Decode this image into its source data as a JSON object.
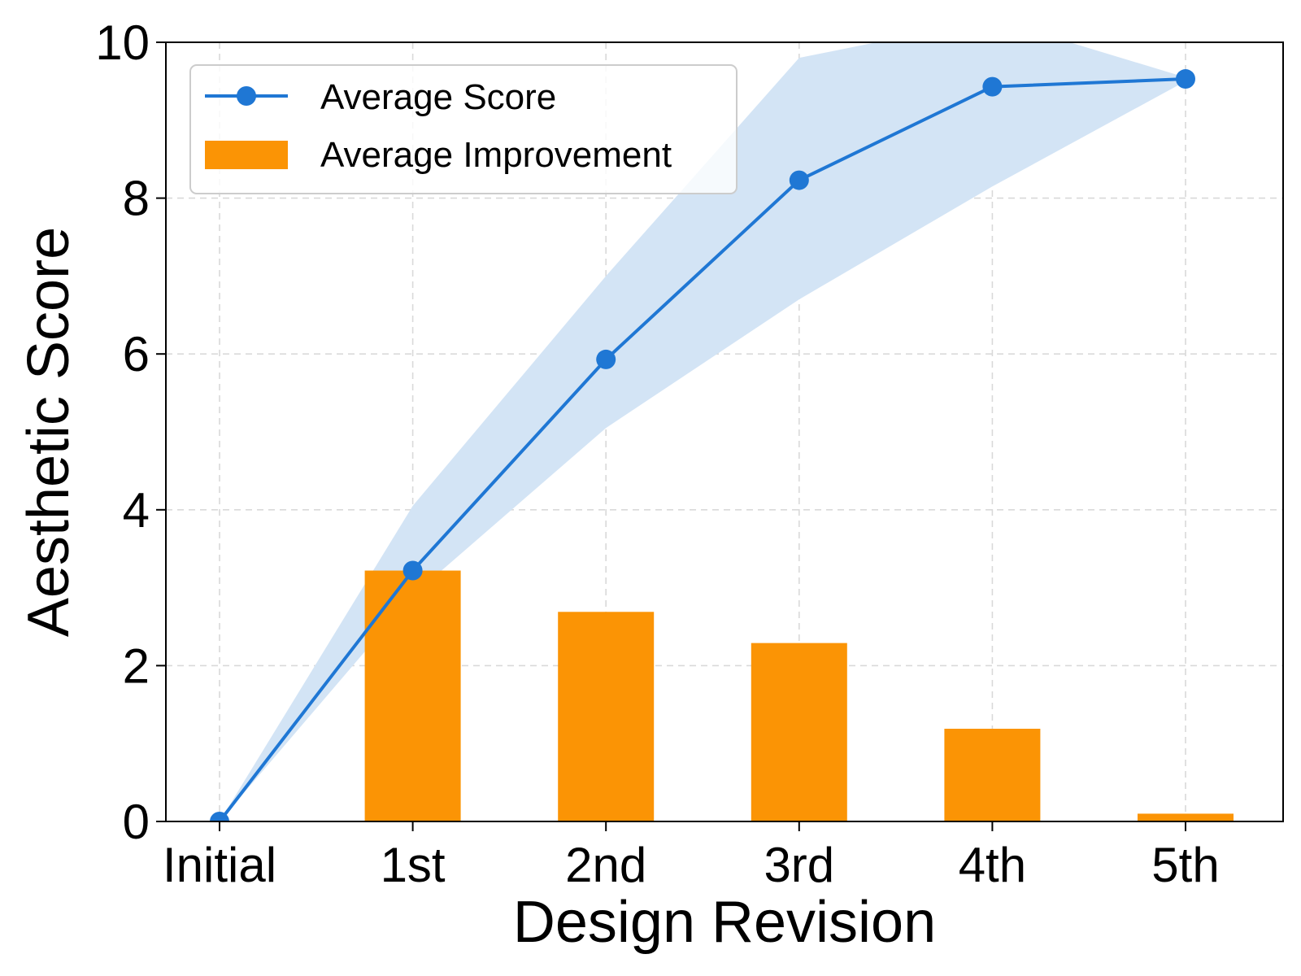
{
  "chart_data": {
    "type": "bar",
    "categories": [
      "Initial",
      "1st",
      "2nd",
      "3rd",
      "4th",
      "5th"
    ],
    "xlabel": "Design Revision",
    "ylabel": "Aesthetic Score",
    "ylim": [
      0,
      10
    ],
    "yticks": [
      "0",
      "2",
      "4",
      "6",
      "8",
      "10"
    ],
    "grid": true,
    "legend_position": "top-left",
    "series": [
      {
        "name": "Average Score",
        "kind": "line",
        "color": "#1f77d4",
        "values": [
          0.0,
          3.22,
          5.93,
          8.23,
          9.43,
          9.53
        ],
        "band_lower": [
          0.0,
          2.9,
          5.05,
          6.7,
          8.15,
          9.5
        ],
        "band_upper": [
          0.0,
          4.05,
          7.0,
          9.8,
          10.3,
          9.55
        ],
        "band_color": "#d3e4f5"
      },
      {
        "name": "Average Improvement",
        "kind": "bar",
        "color": "#fb9405",
        "values": [
          0.0,
          3.22,
          2.69,
          2.29,
          1.19,
          0.1
        ]
      }
    ]
  }
}
